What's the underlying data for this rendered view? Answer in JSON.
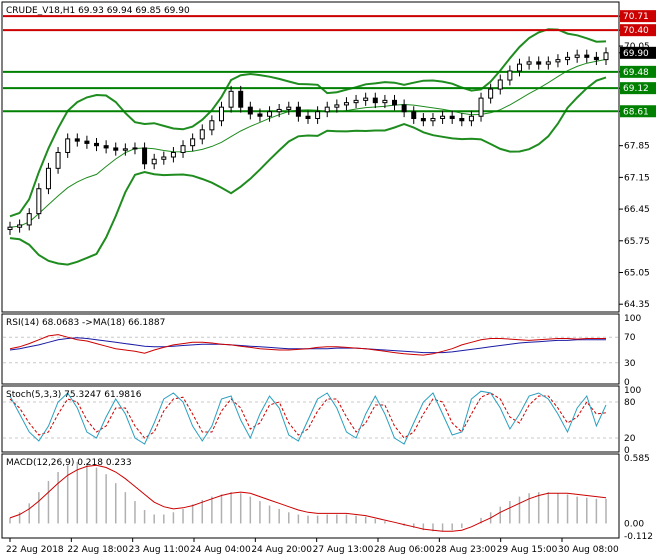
{
  "chart_data": {
    "type": "line",
    "main": {
      "header": "CRUDE_V18,H1  69.93 69.94 69.85 69.90",
      "symbol": "CRUDE_V18,H1",
      "ohlc": [
        69.93,
        69.94,
        69.85,
        69.9
      ],
      "ylim": [
        64.2,
        71.0
      ],
      "y_ticks": [
        "70.71",
        "70.40",
        "70.05",
        "69.90",
        "69.48",
        "69.12",
        "68.61",
        "67.85",
        "67.15",
        "66.45",
        "65.75",
        "65.05",
        "64.35"
      ],
      "levels": [
        {
          "value": 70.71,
          "label": "70.71",
          "color": "#cc0000"
        },
        {
          "value": 70.4,
          "label": "70.40",
          "color": "#cc0000"
        },
        {
          "value": 69.48,
          "label": "69.48",
          "color": "#008000"
        },
        {
          "value": 69.12,
          "label": "69.12",
          "color": "#008000"
        },
        {
          "value": 68.61,
          "label": "68.61",
          "color": "#008000"
        }
      ],
      "current_price": {
        "value": 69.9,
        "label": "69.90"
      },
      "close": [
        66.05,
        66.1,
        66.35,
        66.9,
        67.35,
        67.7,
        68.0,
        67.95,
        67.9,
        67.85,
        67.8,
        67.75,
        67.78,
        67.8,
        67.45,
        67.55,
        67.6,
        67.7,
        67.85,
        68.0,
        68.2,
        68.4,
        68.7,
        69.05,
        68.7,
        68.55,
        68.5,
        68.6,
        68.65,
        68.7,
        68.5,
        68.45,
        68.6,
        68.7,
        68.75,
        68.8,
        68.85,
        68.9,
        68.8,
        68.85,
        68.75,
        68.6,
        68.45,
        68.4,
        68.45,
        68.5,
        68.45,
        68.4,
        68.5,
        68.9,
        69.1,
        69.3,
        69.5,
        69.65,
        69.7,
        69.65,
        69.7,
        69.75,
        69.8,
        69.85,
        69.8,
        69.75,
        69.9
      ]
    },
    "rsi": {
      "header": "RSI(14) 68.0683 ->MA(18) 66.1887",
      "period": 14,
      "value": 68.0683,
      "ma_period": 18,
      "ma_value": 66.1887,
      "ylim": [
        0,
        100
      ],
      "y_ticks": [
        "100",
        "70",
        "30",
        "0"
      ],
      "rsi": [
        52,
        55,
        60,
        66,
        72,
        74,
        70,
        66,
        64,
        60,
        56,
        52,
        50,
        48,
        45,
        50,
        54,
        58,
        60,
        62,
        62,
        61,
        59,
        58,
        56,
        54,
        52,
        51,
        50,
        50,
        51,
        52,
        54,
        55,
        55,
        54,
        53,
        52,
        50,
        48,
        46,
        44,
        43,
        42,
        44,
        48,
        52,
        58,
        62,
        66,
        68,
        68,
        67,
        66,
        65,
        66,
        67,
        68,
        68,
        67,
        68,
        68,
        68
      ],
      "ma": [
        50,
        52,
        55,
        58,
        62,
        66,
        68,
        69,
        68,
        66,
        64,
        62,
        60,
        58,
        56,
        55,
        55,
        56,
        57,
        58,
        59,
        59,
        59,
        58,
        57,
        56,
        55,
        54,
        53,
        52,
        52,
        52,
        52,
        52,
        53,
        53,
        53,
        52,
        51,
        50,
        49,
        48,
        47,
        46,
        46,
        46,
        47,
        49,
        51,
        53,
        55,
        57,
        59,
        61,
        62,
        63,
        64,
        65,
        65,
        66,
        66,
        66,
        66
      ]
    },
    "stochastic": {
      "header": "Stoch(5,3,3) 75.3247 61.9816",
      "params": [
        5,
        3,
        3
      ],
      "main_value": 75.3247,
      "signal_value": 61.9816,
      "ylim": [
        0,
        100
      ],
      "y_ticks": [
        "100",
        "80",
        "20",
        "0"
      ],
      "main": [
        90,
        60,
        30,
        15,
        40,
        80,
        95,
        70,
        30,
        20,
        55,
        85,
        60,
        20,
        10,
        45,
        85,
        95,
        80,
        40,
        15,
        40,
        85,
        90,
        50,
        20,
        60,
        90,
        70,
        25,
        15,
        50,
        85,
        95,
        70,
        30,
        20,
        60,
        90,
        60,
        20,
        10,
        45,
        80,
        95,
        60,
        25,
        30,
        85,
        98,
        95,
        70,
        35,
        60,
        90,
        95,
        85,
        60,
        30,
        70,
        90,
        40,
        75
      ],
      "signal": [
        85,
        70,
        45,
        25,
        30,
        60,
        85,
        80,
        50,
        30,
        40,
        70,
        70,
        40,
        20,
        30,
        65,
        85,
        88,
        60,
        30,
        30,
        65,
        85,
        70,
        35,
        45,
        75,
        80,
        45,
        25,
        35,
        65,
        85,
        85,
        55,
        30,
        45,
        75,
        75,
        40,
        20,
        30,
        60,
        85,
        80,
        45,
        30,
        60,
        88,
        95,
        85,
        55,
        45,
        75,
        90,
        90,
        70,
        45,
        55,
        80,
        60,
        62
      ]
    },
    "macd": {
      "header": "MACD(12,26,9) 0.218 0.233",
      "params": [
        12,
        26,
        9
      ],
      "macd_value": 0.218,
      "signal_value": 0.233,
      "ylim": [
        -0.112,
        0.585
      ],
      "y_ticks": [
        "0.585",
        "0.00",
        "-0.112"
      ],
      "histogram": [
        0.05,
        0.1,
        0.18,
        0.28,
        0.38,
        0.46,
        0.52,
        0.55,
        0.54,
        0.5,
        0.44,
        0.36,
        0.28,
        0.2,
        0.12,
        0.08,
        0.08,
        0.1,
        0.13,
        0.17,
        0.21,
        0.24,
        0.26,
        0.28,
        0.27,
        0.24,
        0.2,
        0.16,
        0.13,
        0.1,
        0.08,
        0.07,
        0.07,
        0.08,
        0.08,
        0.08,
        0.07,
        0.06,
        0.04,
        0.02,
        0.0,
        -0.02,
        -0.04,
        -0.06,
        -0.07,
        -0.07,
        -0.06,
        -0.04,
        0.0,
        0.05,
        0.1,
        0.15,
        0.2,
        0.24,
        0.27,
        0.28,
        0.28,
        0.27,
        0.26,
        0.24,
        0.23,
        0.22,
        0.22
      ],
      "signal": [
        0.05,
        0.08,
        0.13,
        0.2,
        0.28,
        0.36,
        0.43,
        0.48,
        0.51,
        0.52,
        0.5,
        0.46,
        0.4,
        0.33,
        0.26,
        0.19,
        0.15,
        0.13,
        0.14,
        0.16,
        0.19,
        0.22,
        0.25,
        0.27,
        0.28,
        0.27,
        0.24,
        0.21,
        0.18,
        0.15,
        0.12,
        0.1,
        0.09,
        0.09,
        0.09,
        0.09,
        0.08,
        0.07,
        0.05,
        0.03,
        0.01,
        -0.01,
        -0.03,
        -0.05,
        -0.06,
        -0.07,
        -0.07,
        -0.06,
        -0.03,
        0.01,
        0.05,
        0.1,
        0.14,
        0.18,
        0.22,
        0.25,
        0.27,
        0.27,
        0.27,
        0.26,
        0.25,
        0.24,
        0.23
      ]
    },
    "x_labels": [
      "22 Aug 2018",
      "22 Aug 18:00",
      "23 Aug 11:00",
      "24 Aug 04:00",
      "24 Aug 20:00",
      "27 Aug 13:00",
      "28 Aug 06:00",
      "28 Aug 23:00",
      "29 Aug 15:00",
      "30 Aug 08:00"
    ],
    "colors": {
      "up": "#008000",
      "down": "#cc0000",
      "band": "#1e8c1e",
      "rsi": "#cc0000",
      "rsi_ma": "#1a1aa6",
      "stoch_main": "#2a9fbf",
      "stoch_signal": "#cc0000",
      "macd_hist": "#b0b0b0",
      "macd_signal": "#cc0000",
      "price_box": "#000000"
    }
  }
}
